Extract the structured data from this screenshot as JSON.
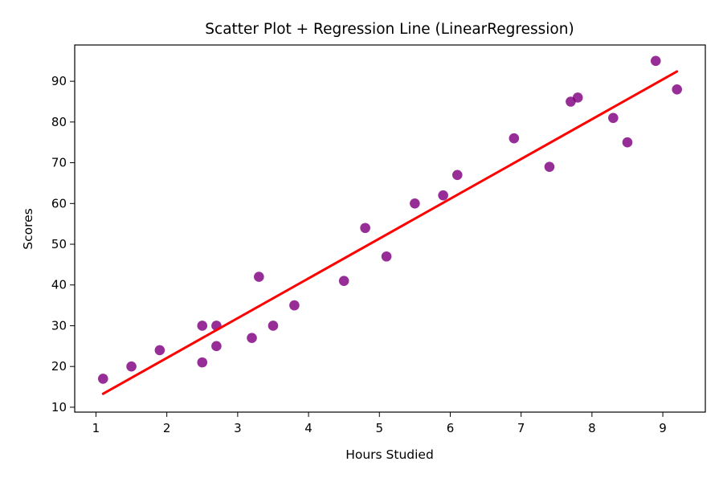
{
  "chart_data": {
    "type": "scatter",
    "title": "Scatter Plot + Regression Line (LinearRegression)",
    "xlabel": "Hours Studied",
    "ylabel": "Scores",
    "xlim": [
      0.7,
      9.6
    ],
    "ylim": [
      8.8,
      98.9
    ],
    "xticks": [
      1,
      2,
      3,
      4,
      5,
      6,
      7,
      8,
      9
    ],
    "yticks": [
      10,
      20,
      30,
      40,
      50,
      60,
      70,
      80,
      90
    ],
    "grid": false,
    "points": {
      "color": "#800080",
      "x": [
        2.5,
        5.1,
        3.2,
        8.5,
        3.5,
        1.5,
        9.2,
        5.5,
        8.3,
        2.7,
        7.7,
        5.9,
        4.5,
        3.3,
        1.1,
        8.9,
        2.5,
        1.9,
        6.1,
        7.4,
        2.7,
        4.8,
        3.8,
        6.9,
        7.8
      ],
      "y": [
        21,
        47,
        27,
        75,
        30,
        20,
        88,
        60,
        81,
        25,
        85,
        62,
        41,
        42,
        17,
        95,
        30,
        24,
        67,
        69,
        30,
        54,
        35,
        76,
        86
      ]
    },
    "regression_line": {
      "color": "#ff0000",
      "x": [
        1.1,
        9.2
      ],
      "y": [
        13.3,
        92.4
      ]
    }
  }
}
